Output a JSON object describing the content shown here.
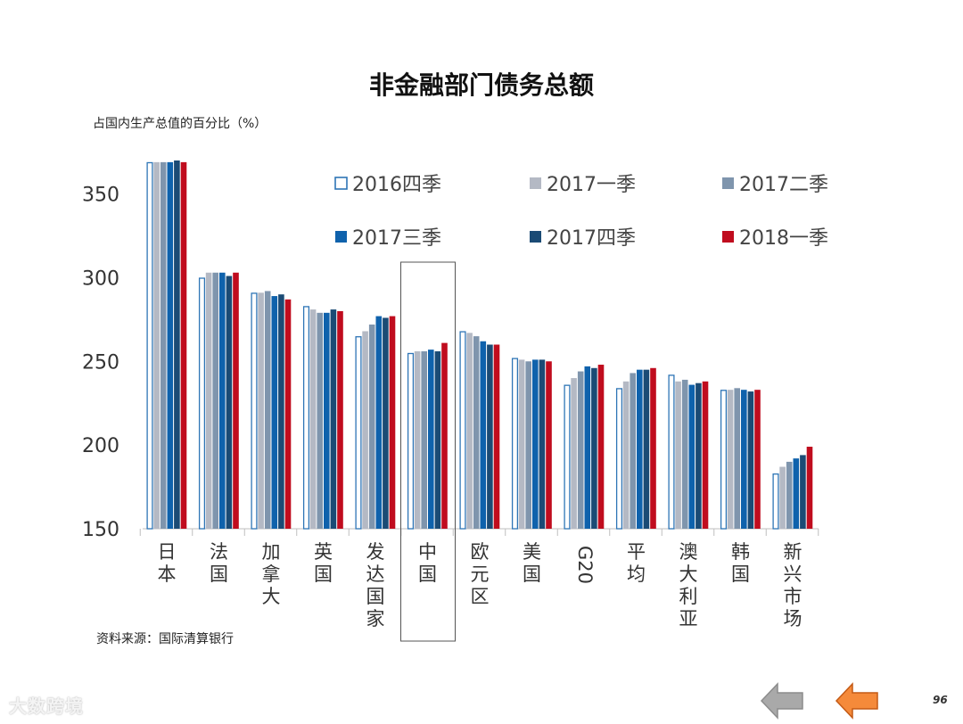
{
  "page": {
    "title": "非金融部门债务总额",
    "page_number": "96",
    "watermark": "大数跨境"
  },
  "chart_data": {
    "type": "bar",
    "title": "非金融部门债务总额",
    "ylabel": "占国内生产总值的百分比（%）",
    "xlabel": "",
    "source": "资料来源：国际清算银行",
    "ylim": [
      150,
      370
    ],
    "yticks": [
      150,
      200,
      250,
      300,
      350
    ],
    "highlight_category": "中国",
    "categories": [
      "日本",
      "法国",
      "加拿大",
      "英国",
      "发达国家",
      "中国",
      "欧元区",
      "美国",
      "G20",
      "平均",
      "澳大利亚",
      "韩国",
      "新兴市场"
    ],
    "legend_position": "top",
    "series": [
      {
        "name": "2016四季",
        "color": "#2e75b6",
        "style": "outline",
        "values": [
          369,
          300,
          291,
          283,
          265,
          255,
          268,
          252,
          236,
          234,
          242,
          233,
          183
        ]
      },
      {
        "name": "2017一季",
        "color": "#b4b9c4",
        "style": "solid",
        "values": [
          369,
          303,
          291,
          281,
          268,
          256,
          267,
          251,
          240,
          238,
          238,
          233,
          187
        ]
      },
      {
        "name": "2017二季",
        "color": "#7f95ad",
        "style": "solid",
        "values": [
          369,
          303,
          292,
          279,
          272,
          256,
          265,
          250,
          244,
          243,
          239,
          234,
          190
        ]
      },
      {
        "name": "2017三季",
        "color": "#0f62ac",
        "style": "solid",
        "values": [
          369,
          303,
          289,
          279,
          277,
          257,
          262,
          251,
          247,
          245,
          236,
          233,
          192
        ]
      },
      {
        "name": "2017四季",
        "color": "#1b4b75",
        "style": "solid",
        "values": [
          370,
          301,
          290,
          281,
          276,
          256,
          260,
          251,
          246,
          245,
          237,
          232,
          194
        ]
      },
      {
        "name": "2018一季",
        "color": "#c00c1e",
        "style": "solid",
        "values": [
          369,
          303,
          287,
          280,
          277,
          261,
          260,
          250,
          248,
          246,
          238,
          233,
          199
        ]
      }
    ]
  }
}
